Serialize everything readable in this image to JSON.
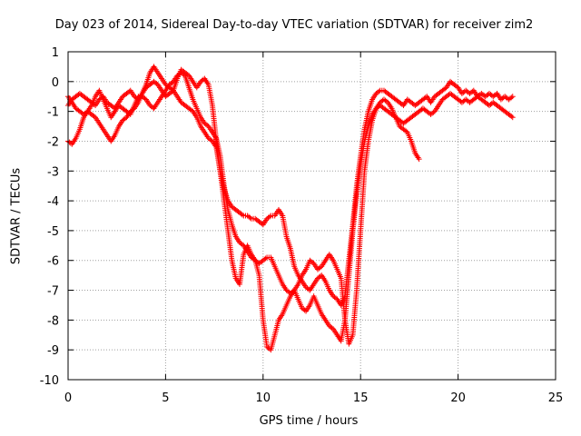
{
  "chart_data": {
    "type": "scatter",
    "title": "Day 023 of 2014, Sidereal Day-to-day VTEC variation (SDTVAR) for receiver zim2",
    "xlabel": "GPS time / hours",
    "ylabel": "SDTVAR / TECUs",
    "xlim": [
      0,
      25
    ],
    "ylim": [
      -10,
      1
    ],
    "xticks": [
      0,
      5,
      10,
      15,
      20,
      25
    ],
    "yticks": [
      -10,
      -9,
      -8,
      -7,
      -6,
      -5,
      -4,
      -3,
      -2,
      -1,
      0,
      1
    ],
    "grid": true,
    "marker": "+",
    "color": "#ff0000",
    "series": [
      {
        "x": [
          0.0,
          0.2,
          0.4,
          0.6,
          0.8,
          1.0,
          1.2,
          1.4,
          1.6,
          1.8,
          2.0,
          2.2,
          2.4,
          2.6,
          2.8,
          3.0,
          3.2,
          3.4,
          3.6,
          3.8,
          4.0,
          4.2,
          4.4,
          4.6,
          4.8,
          5.0,
          5.2,
          5.4,
          5.6,
          5.8,
          6.0,
          6.2,
          6.4,
          6.6,
          6.8,
          7.0,
          7.2,
          7.4,
          7.6,
          7.8,
          8.0,
          8.2,
          8.4,
          8.6,
          8.8,
          9.0,
          9.2,
          9.4,
          9.6,
          9.8,
          10.0,
          10.2,
          10.4,
          10.6,
          10.8,
          11.0,
          11.2,
          11.4,
          11.6,
          11.8,
          12.0,
          12.2,
          12.4,
          12.6,
          12.8,
          13.0,
          13.2,
          13.4,
          13.6,
          13.8,
          14.0,
          14.2,
          14.4,
          14.6,
          14.8,
          15.0,
          15.2,
          15.4,
          15.6,
          15.8,
          16.0,
          16.2,
          16.4,
          16.6,
          16.8,
          17.0,
          17.2,
          17.4,
          17.6,
          17.8,
          18.0,
          18.2,
          18.4,
          18.6,
          18.8,
          19.0,
          19.2,
          19.4,
          19.6,
          19.8,
          20.0,
          20.2,
          20.4,
          20.6,
          20.8,
          21.0,
          21.2,
          21.4,
          21.6,
          21.8,
          22.0,
          22.2,
          22.4,
          22.6,
          22.8
        ],
        "y": [
          -0.8,
          -0.6,
          -0.5,
          -0.4,
          -0.5,
          -0.6,
          -0.7,
          -0.8,
          -0.6,
          -0.5,
          -0.7,
          -0.8,
          -0.9,
          -0.7,
          -0.5,
          -0.4,
          -0.3,
          -0.5,
          -0.6,
          -0.4,
          -0.2,
          -0.1,
          0.0,
          -0.1,
          -0.3,
          -0.5,
          -0.4,
          -0.3,
          0.1,
          0.4,
          0.3,
          0.2,
          0.0,
          -0.2,
          0.0,
          0.1,
          -0.1,
          -0.8,
          -2.0,
          -3.0,
          -3.6,
          -4.0,
          -4.2,
          -4.3,
          -4.4,
          -4.5,
          -4.5,
          -4.6,
          -4.6,
          -4.7,
          -4.8,
          -4.6,
          -4.5,
          -4.5,
          -4.3,
          -4.5,
          -5.2,
          -5.6,
          -6.2,
          -6.5,
          -6.7,
          -6.9,
          -7.0,
          -6.8,
          -6.6,
          -6.5,
          -6.7,
          -7.0,
          -7.2,
          -7.3,
          -7.5,
          -7.2,
          -6.0,
          -4.8,
          -3.5,
          -2.5,
          -1.6,
          -1.0,
          -0.6,
          -0.4,
          -0.3,
          -0.3,
          -0.4,
          -0.5,
          -0.6,
          -0.7,
          -0.8,
          -0.6,
          -0.7,
          -0.8,
          -0.7,
          -0.6,
          -0.5,
          -0.7,
          -0.5,
          -0.4,
          -0.3,
          -0.2,
          0.0,
          -0.1,
          -0.2,
          -0.4,
          -0.3,
          -0.4,
          -0.3,
          -0.5,
          -0.4,
          -0.5,
          -0.4,
          -0.5,
          -0.4,
          -0.6,
          -0.5,
          -0.6,
          -0.5
        ]
      },
      {
        "x": [
          0.0,
          0.2,
          0.4,
          0.6,
          0.8,
          1.0,
          1.2,
          1.4,
          1.6,
          1.8,
          2.0,
          2.2,
          2.4,
          2.6,
          2.8,
          3.0,
          3.2,
          3.4,
          3.6,
          3.8,
          4.0,
          4.2,
          4.4,
          4.6,
          4.8,
          5.0,
          5.2,
          5.4,
          5.6,
          5.8,
          6.0,
          6.2,
          6.4,
          6.6,
          6.8,
          7.0,
          7.2,
          7.4,
          7.6,
          7.8,
          8.0,
          8.2,
          8.4,
          8.6,
          8.8,
          9.0,
          9.2,
          9.4,
          9.6,
          9.8,
          10.0,
          10.2,
          10.4,
          10.6,
          10.8,
          11.0,
          11.2,
          11.4,
          11.6,
          11.8,
          12.0,
          12.2,
          12.4,
          12.6,
          12.8,
          13.0,
          13.2,
          13.4,
          13.6,
          13.8,
          14.0,
          14.2,
          14.4,
          14.6,
          14.8,
          15.0,
          15.2,
          15.4,
          15.6,
          15.8,
          16.0,
          16.2,
          16.4,
          16.6,
          16.8,
          17.0,
          17.2,
          17.4,
          17.6,
          17.8,
          18.0
        ],
        "y": [
          -2.0,
          -2.1,
          -1.9,
          -1.6,
          -1.2,
          -1.0,
          -1.1,
          -1.2,
          -1.4,
          -1.6,
          -1.8,
          -2.0,
          -1.8,
          -1.5,
          -1.3,
          -1.2,
          -1.0,
          -0.9,
          -0.7,
          -0.4,
          -0.1,
          0.3,
          0.5,
          0.3,
          0.1,
          -0.1,
          -0.2,
          -0.3,
          -0.5,
          -0.7,
          -0.8,
          -0.9,
          -1.0,
          -1.2,
          -1.5,
          -1.7,
          -1.9,
          -2.0,
          -2.2,
          -3.0,
          -4.0,
          -5.0,
          -6.0,
          -6.6,
          -6.8,
          -5.8,
          -5.5,
          -5.8,
          -6.0,
          -6.5,
          -8.0,
          -8.9,
          -9.0,
          -8.5,
          -8.0,
          -7.8,
          -7.5,
          -7.2,
          -7.0,
          -6.8,
          -6.5,
          -6.3,
          -6.0,
          -6.1,
          -6.3,
          -6.2,
          -6.0,
          -5.8,
          -6.0,
          -6.3,
          -6.6,
          -8.0,
          -8.8,
          -8.5,
          -7.0,
          -5.0,
          -3.0,
          -2.0,
          -1.3,
          -0.9,
          -0.7,
          -0.6,
          -0.7,
          -0.9,
          -1.2,
          -1.5,
          -1.6,
          -1.7,
          -2.0,
          -2.4,
          -2.6
        ]
      },
      {
        "x": [
          0.0,
          0.2,
          0.4,
          0.6,
          0.8,
          1.0,
          1.2,
          1.4,
          1.6,
          1.8,
          2.0,
          2.2,
          2.4,
          2.6,
          2.8,
          3.0,
          3.2,
          3.4,
          3.6,
          3.8,
          4.0,
          4.2,
          4.4,
          4.6,
          4.8,
          5.0,
          5.2,
          5.4,
          5.6,
          5.8,
          6.0,
          6.2,
          6.4,
          6.6,
          6.8,
          7.0,
          7.2,
          7.4,
          7.6,
          7.8,
          8.0,
          8.2,
          8.4,
          8.6,
          8.8,
          9.0,
          9.2,
          9.4,
          9.6,
          9.8,
          10.0,
          10.2,
          10.4,
          10.6,
          10.8,
          11.0,
          11.2,
          11.4,
          11.6,
          11.8,
          12.0,
          12.2,
          12.4,
          12.6,
          12.8,
          13.0,
          13.2,
          13.4,
          13.6,
          13.8,
          14.0,
          14.2,
          14.4,
          14.6,
          14.8,
          15.0,
          15.2,
          15.4,
          15.6,
          15.8,
          16.0,
          16.2,
          16.4,
          16.6,
          16.8,
          17.0,
          17.2,
          17.4,
          17.6,
          17.8,
          18.0,
          18.2,
          18.4,
          18.6,
          18.8,
          19.0,
          19.2,
          19.4,
          19.6,
          19.8,
          20.0,
          20.2,
          20.4,
          20.6,
          20.8,
          21.0,
          21.2,
          21.4,
          21.6,
          21.8,
          22.0,
          22.2,
          22.4,
          22.6,
          22.8
        ],
        "y": [
          -0.5,
          -0.7,
          -0.9,
          -1.0,
          -1.1,
          -1.0,
          -0.8,
          -0.5,
          -0.3,
          -0.6,
          -0.9,
          -1.2,
          -1.0,
          -0.8,
          -0.9,
          -1.0,
          -1.1,
          -0.8,
          -0.5,
          -0.5,
          -0.6,
          -0.8,
          -0.9,
          -0.7,
          -0.5,
          -0.3,
          -0.1,
          0.0,
          0.2,
          0.3,
          0.2,
          -0.2,
          -0.6,
          -0.9,
          -1.2,
          -1.4,
          -1.5,
          -1.7,
          -1.9,
          -2.5,
          -3.5,
          -4.3,
          -4.8,
          -5.2,
          -5.4,
          -5.5,
          -5.7,
          -5.9,
          -6.0,
          -6.1,
          -6.0,
          -5.9,
          -5.9,
          -6.2,
          -6.5,
          -6.8,
          -7.0,
          -7.1,
          -7.0,
          -7.3,
          -7.6,
          -7.7,
          -7.5,
          -7.2,
          -7.5,
          -7.8,
          -8.0,
          -8.2,
          -8.3,
          -8.5,
          -8.7,
          -8.0,
          -6.5,
          -5.0,
          -3.8,
          -2.8,
          -2.0,
          -1.5,
          -1.1,
          -0.9,
          -0.8,
          -0.9,
          -1.0,
          -1.1,
          -1.2,
          -1.3,
          -1.4,
          -1.3,
          -1.2,
          -1.1,
          -1.0,
          -0.9,
          -1.0,
          -1.1,
          -1.0,
          -0.8,
          -0.6,
          -0.5,
          -0.4,
          -0.5,
          -0.6,
          -0.7,
          -0.6,
          -0.7,
          -0.6,
          -0.5,
          -0.6,
          -0.7,
          -0.8,
          -0.7,
          -0.8,
          -0.9,
          -1.0,
          -1.1,
          -1.2
        ]
      }
    ]
  }
}
